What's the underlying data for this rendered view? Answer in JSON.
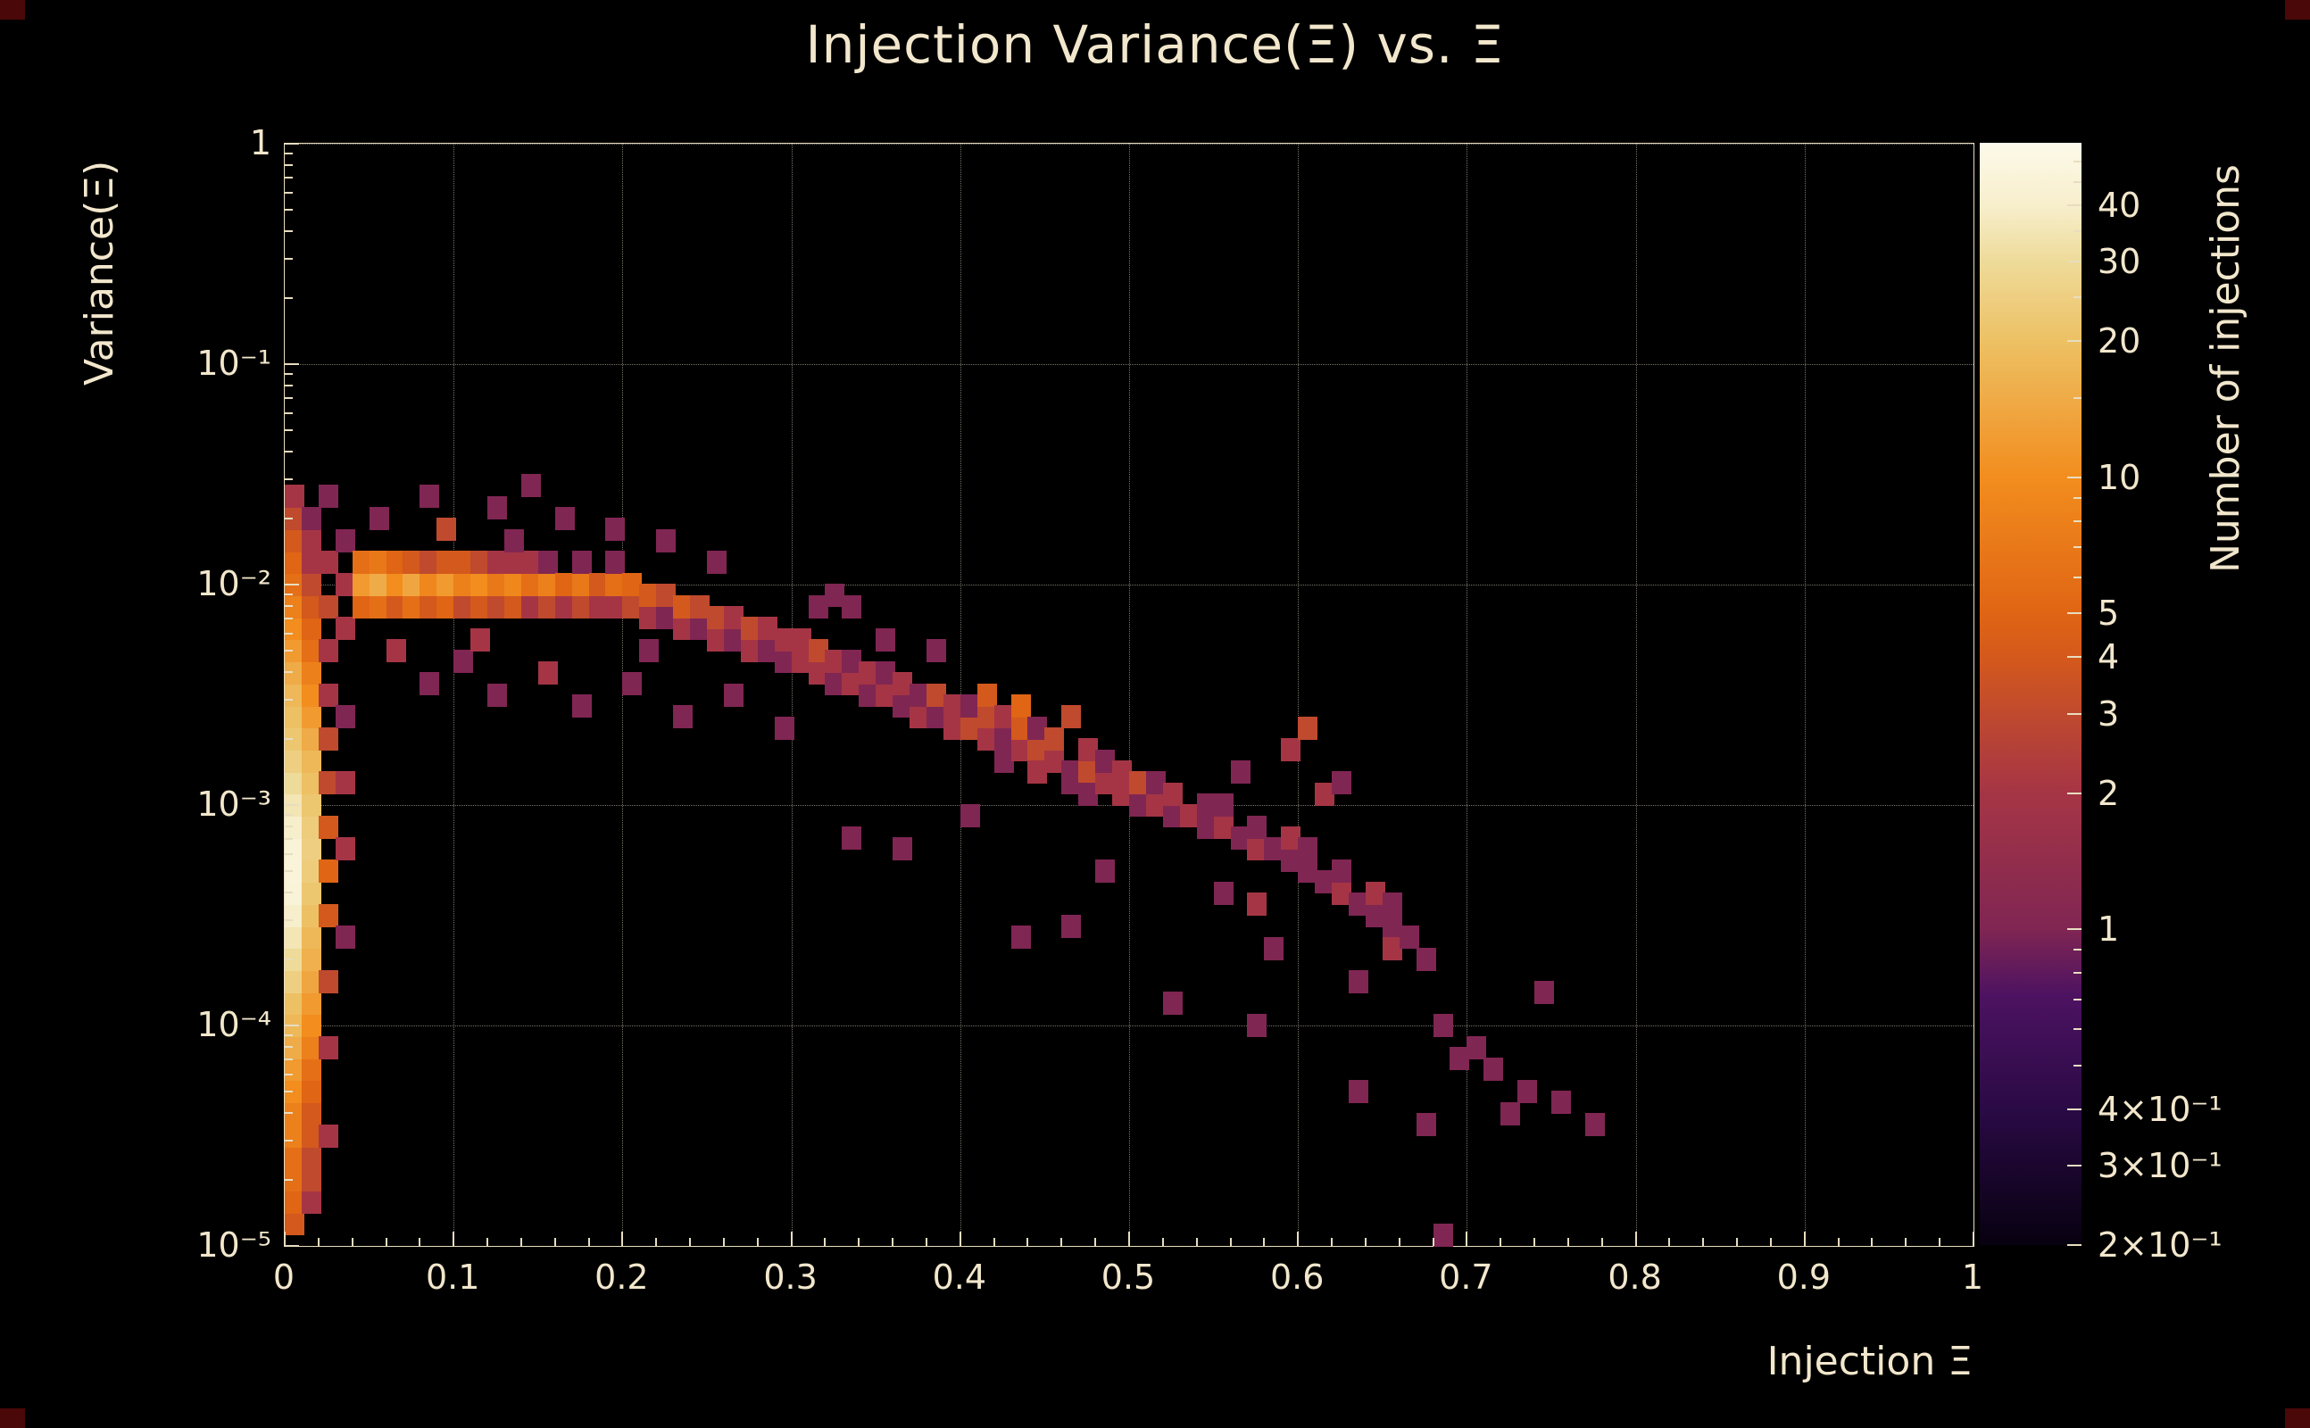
{
  "chart_data": {
    "type": "heatmap",
    "title": "Injection Variance(Ξ) vs. Ξ",
    "xlabel": "Injection Ξ",
    "ylabel": "Variance(Ξ)",
    "zlabel": "Number of injections",
    "xlim": [
      0,
      1
    ],
    "ylim": [
      1e-05,
      1
    ],
    "ylog": true,
    "zlim": [
      0.2,
      55
    ],
    "zlog": true,
    "grid": true,
    "x_ticks": [
      "0",
      "0.1",
      "0.2",
      "0.3",
      "0.4",
      "0.5",
      "0.6",
      "0.7",
      "0.8",
      "0.9",
      "1"
    ],
    "y_ticks": [
      {
        "logv": 0,
        "label": "1"
      },
      {
        "logv": -1,
        "label": "10⁻¹"
      },
      {
        "logv": -2,
        "label": "10⁻²"
      },
      {
        "logv": -3,
        "label": "10⁻³"
      },
      {
        "logv": -4,
        "label": "10⁻⁴"
      },
      {
        "logv": -5,
        "label": "10⁻⁵"
      }
    ],
    "colorbar_ticks": [
      {
        "v": 40,
        "label": "40"
      },
      {
        "v": 30,
        "label": "30"
      },
      {
        "v": 20,
        "label": "20"
      },
      {
        "v": 10,
        "label": "10"
      },
      {
        "v": 5,
        "label": "5"
      },
      {
        "v": 4,
        "label": "4"
      },
      {
        "v": 3,
        "label": "3"
      },
      {
        "v": 2,
        "label": "2"
      },
      {
        "v": 1,
        "label": "1"
      },
      {
        "v": 0.4,
        "label": "4×10⁻¹"
      },
      {
        "v": 0.3,
        "label": "3×10⁻¹"
      },
      {
        "v": 0.2,
        "label": "2×10⁻¹"
      }
    ],
    "colorbar_minor_ticks": [
      0.5,
      0.6,
      0.7,
      0.8,
      0.9,
      6,
      7,
      8,
      9,
      15,
      25,
      35,
      45,
      50
    ],
    "bin_width_x": 0.01,
    "bin_height_decades": 0.1,
    "cells": [
      [
        0.0,
        -4.9,
        4
      ],
      [
        0.0,
        -4.8,
        5
      ],
      [
        0.0,
        -4.7,
        6
      ],
      [
        0.0,
        -4.6,
        6
      ],
      [
        0.0,
        -4.5,
        8
      ],
      [
        0.0,
        -4.4,
        8
      ],
      [
        0.0,
        -4.3,
        10
      ],
      [
        0.0,
        -4.2,
        12
      ],
      [
        0.0,
        -4.1,
        15
      ],
      [
        0.0,
        -4.0,
        18
      ],
      [
        0.0,
        -3.9,
        20
      ],
      [
        0.0,
        -3.8,
        25
      ],
      [
        0.0,
        -3.7,
        30
      ],
      [
        0.0,
        -3.6,
        35
      ],
      [
        0.0,
        -3.5,
        40
      ],
      [
        0.0,
        -3.4,
        45
      ],
      [
        0.0,
        -3.3,
        47
      ],
      [
        0.0,
        -3.2,
        45
      ],
      [
        0.0,
        -3.1,
        40
      ],
      [
        0.0,
        -3.0,
        35
      ],
      [
        0.0,
        -2.9,
        30
      ],
      [
        0.0,
        -2.8,
        25
      ],
      [
        0.0,
        -2.7,
        22
      ],
      [
        0.0,
        -2.6,
        20
      ],
      [
        0.0,
        -2.5,
        18
      ],
      [
        0.0,
        -2.4,
        15
      ],
      [
        0.0,
        -2.3,
        12
      ],
      [
        0.0,
        -2.2,
        10
      ],
      [
        0.0,
        -2.1,
        8
      ],
      [
        0.0,
        -2.0,
        6
      ],
      [
        0.0,
        -1.9,
        5
      ],
      [
        0.0,
        -1.8,
        4
      ],
      [
        0.0,
        -1.7,
        3
      ],
      [
        0.0,
        -1.6,
        2
      ],
      [
        0.01,
        -4.8,
        2
      ],
      [
        0.01,
        -4.7,
        3
      ],
      [
        0.01,
        -4.6,
        3
      ],
      [
        0.01,
        -4.5,
        4
      ],
      [
        0.01,
        -4.4,
        4
      ],
      [
        0.01,
        -4.3,
        5
      ],
      [
        0.01,
        -4.2,
        6
      ],
      [
        0.01,
        -4.1,
        8
      ],
      [
        0.01,
        -4.0,
        10
      ],
      [
        0.01,
        -3.9,
        12
      ],
      [
        0.01,
        -3.8,
        14
      ],
      [
        0.01,
        -3.7,
        16
      ],
      [
        0.01,
        -3.6,
        18
      ],
      [
        0.01,
        -3.5,
        20
      ],
      [
        0.01,
        -3.4,
        22
      ],
      [
        0.01,
        -3.3,
        24
      ],
      [
        0.01,
        -3.2,
        25
      ],
      [
        0.01,
        -3.1,
        24
      ],
      [
        0.01,
        -3.0,
        22
      ],
      [
        0.01,
        -2.9,
        20
      ],
      [
        0.01,
        -2.8,
        18
      ],
      [
        0.01,
        -2.7,
        15
      ],
      [
        0.01,
        -2.6,
        12
      ],
      [
        0.01,
        -2.5,
        10
      ],
      [
        0.01,
        -2.4,
        8
      ],
      [
        0.01,
        -2.3,
        6
      ],
      [
        0.01,
        -2.2,
        5
      ],
      [
        0.01,
        -2.1,
        4
      ],
      [
        0.01,
        -2.0,
        3
      ],
      [
        0.01,
        -1.9,
        2
      ],
      [
        0.01,
        -1.8,
        2
      ],
      [
        0.01,
        -1.7,
        1
      ],
      [
        0.02,
        -4.5,
        2
      ],
      [
        0.02,
        -4.1,
        2
      ],
      [
        0.02,
        -3.8,
        3
      ],
      [
        0.02,
        -3.5,
        4
      ],
      [
        0.02,
        -3.3,
        5
      ],
      [
        0.02,
        -3.1,
        4
      ],
      [
        0.02,
        -2.9,
        3
      ],
      [
        0.02,
        -2.7,
        3
      ],
      [
        0.02,
        -2.5,
        2
      ],
      [
        0.02,
        -2.3,
        2
      ],
      [
        0.02,
        -2.1,
        3
      ],
      [
        0.02,
        -1.9,
        2
      ],
      [
        0.02,
        -1.6,
        1
      ],
      [
        0.03,
        -3.6,
        1
      ],
      [
        0.03,
        -3.2,
        2
      ],
      [
        0.03,
        -2.9,
        2
      ],
      [
        0.03,
        -2.6,
        1
      ],
      [
        0.03,
        -2.2,
        2
      ],
      [
        0.03,
        -2.0,
        2
      ],
      [
        0.03,
        -1.8,
        1
      ],
      [
        0.04,
        -2.1,
        5
      ],
      [
        0.04,
        -2.0,
        12
      ],
      [
        0.04,
        -1.9,
        6
      ],
      [
        0.05,
        -2.1,
        6
      ],
      [
        0.05,
        -2.0,
        15
      ],
      [
        0.05,
        -1.9,
        7
      ],
      [
        0.06,
        -2.1,
        4
      ],
      [
        0.06,
        -2.0,
        10
      ],
      [
        0.06,
        -1.9,
        5
      ],
      [
        0.07,
        -2.1,
        6
      ],
      [
        0.07,
        -2.0,
        14
      ],
      [
        0.07,
        -1.9,
        4
      ],
      [
        0.08,
        -2.1,
        4
      ],
      [
        0.08,
        -2.0,
        9
      ],
      [
        0.08,
        -1.9,
        3
      ],
      [
        0.09,
        -2.1,
        5
      ],
      [
        0.09,
        -2.0,
        12
      ],
      [
        0.09,
        -1.9,
        4
      ],
      [
        0.1,
        -2.1,
        3
      ],
      [
        0.1,
        -2.0,
        8
      ],
      [
        0.1,
        -1.9,
        4
      ],
      [
        0.11,
        -2.1,
        4
      ],
      [
        0.11,
        -2.0,
        10
      ],
      [
        0.11,
        -1.9,
        3
      ],
      [
        0.12,
        -2.1,
        3
      ],
      [
        0.12,
        -2.0,
        7
      ],
      [
        0.12,
        -1.9,
        2
      ],
      [
        0.13,
        -2.1,
        4
      ],
      [
        0.13,
        -2.0,
        9
      ],
      [
        0.13,
        -1.9,
        2
      ],
      [
        0.14,
        -2.1,
        2
      ],
      [
        0.14,
        -2.0,
        6
      ],
      [
        0.14,
        -1.9,
        2
      ],
      [
        0.15,
        -2.1,
        3
      ],
      [
        0.15,
        -2.0,
        8
      ],
      [
        0.15,
        -1.9,
        1
      ],
      [
        0.16,
        -2.1,
        2
      ],
      [
        0.16,
        -2.0,
        5
      ],
      [
        0.17,
        -2.1,
        3
      ],
      [
        0.17,
        -2.0,
        7
      ],
      [
        0.17,
        -1.9,
        1
      ],
      [
        0.18,
        -2.1,
        2
      ],
      [
        0.18,
        -2.0,
        4
      ],
      [
        0.19,
        -2.1,
        2
      ],
      [
        0.19,
        -2.0,
        6
      ],
      [
        0.19,
        -1.9,
        1
      ],
      [
        0.2,
        -2.1,
        3
      ],
      [
        0.2,
        -2.0,
        5
      ],
      [
        0.21,
        -2.15,
        2
      ],
      [
        0.21,
        -2.05,
        4
      ],
      [
        0.22,
        -2.15,
        1
      ],
      [
        0.22,
        -2.05,
        3
      ],
      [
        0.23,
        -2.2,
        2
      ],
      [
        0.23,
        -2.1,
        4
      ],
      [
        0.24,
        -2.2,
        1
      ],
      [
        0.24,
        -2.1,
        3
      ],
      [
        0.25,
        -2.25,
        2
      ],
      [
        0.25,
        -2.15,
        3
      ],
      [
        0.26,
        -2.25,
        1
      ],
      [
        0.26,
        -2.15,
        2
      ],
      [
        0.27,
        -2.3,
        2
      ],
      [
        0.27,
        -2.2,
        3
      ],
      [
        0.28,
        -2.3,
        1
      ],
      [
        0.28,
        -2.2,
        2
      ],
      [
        0.29,
        -2.35,
        1
      ],
      [
        0.29,
        -2.25,
        2
      ],
      [
        0.3,
        -2.35,
        2
      ],
      [
        0.3,
        -2.25,
        2
      ],
      [
        0.31,
        -2.1,
        1
      ],
      [
        0.32,
        -2.05,
        1
      ],
      [
        0.33,
        -2.1,
        1
      ],
      [
        0.05,
        -1.7,
        1
      ],
      [
        0.08,
        -1.6,
        1
      ],
      [
        0.09,
        -1.75,
        3
      ],
      [
        0.12,
        -1.65,
        1
      ],
      [
        0.13,
        -1.8,
        1
      ],
      [
        0.14,
        -1.55,
        1
      ],
      [
        0.16,
        -1.7,
        1
      ],
      [
        0.19,
        -1.75,
        1
      ],
      [
        0.22,
        -1.8,
        1
      ],
      [
        0.25,
        -1.9,
        1
      ],
      [
        0.06,
        -2.3,
        2
      ],
      [
        0.08,
        -2.45,
        1
      ],
      [
        0.1,
        -2.35,
        1
      ],
      [
        0.11,
        -2.25,
        2
      ],
      [
        0.12,
        -2.5,
        1
      ],
      [
        0.15,
        -2.4,
        2
      ],
      [
        0.17,
        -2.55,
        1
      ],
      [
        0.2,
        -2.45,
        1
      ],
      [
        0.21,
        -2.3,
        1
      ],
      [
        0.23,
        -2.6,
        1
      ],
      [
        0.26,
        -2.5,
        1
      ],
      [
        0.29,
        -2.65,
        1
      ],
      [
        0.31,
        -2.4,
        2
      ],
      [
        0.31,
        -2.3,
        3
      ],
      [
        0.32,
        -2.45,
        1
      ],
      [
        0.32,
        -2.35,
        2
      ],
      [
        0.33,
        -2.45,
        2
      ],
      [
        0.33,
        -2.35,
        1
      ],
      [
        0.34,
        -2.5,
        1
      ],
      [
        0.34,
        -2.4,
        2
      ],
      [
        0.35,
        -2.5,
        2
      ],
      [
        0.35,
        -2.4,
        1
      ],
      [
        0.35,
        -2.25,
        1
      ],
      [
        0.36,
        -2.55,
        1
      ],
      [
        0.36,
        -2.45,
        2
      ],
      [
        0.37,
        -2.6,
        2
      ],
      [
        0.37,
        -2.5,
        1
      ],
      [
        0.38,
        -2.6,
        1
      ],
      [
        0.38,
        -2.5,
        3
      ],
      [
        0.38,
        -2.3,
        1
      ],
      [
        0.39,
        -2.65,
        2
      ],
      [
        0.39,
        -2.55,
        2
      ],
      [
        0.4,
        -2.65,
        3
      ],
      [
        0.4,
        -2.55,
        1
      ],
      [
        0.41,
        -2.7,
        2
      ],
      [
        0.41,
        -2.6,
        3
      ],
      [
        0.41,
        -2.5,
        4
      ],
      [
        0.42,
        -2.7,
        1
      ],
      [
        0.42,
        -2.6,
        2
      ],
      [
        0.42,
        -2.8,
        1
      ],
      [
        0.43,
        -2.75,
        2
      ],
      [
        0.43,
        -2.65,
        4
      ],
      [
        0.43,
        -2.55,
        5
      ],
      [
        0.44,
        -2.75,
        3
      ],
      [
        0.44,
        -2.65,
        1
      ],
      [
        0.44,
        -2.85,
        2
      ],
      [
        0.45,
        -2.8,
        2
      ],
      [
        0.45,
        -2.7,
        3
      ],
      [
        0.46,
        -2.85,
        1
      ],
      [
        0.46,
        -2.6,
        3
      ],
      [
        0.46,
        -2.9,
        1
      ],
      [
        0.47,
        -2.85,
        3
      ],
      [
        0.47,
        -2.95,
        1
      ],
      [
        0.47,
        -2.75,
        2
      ],
      [
        0.48,
        -2.9,
        2
      ],
      [
        0.48,
        -2.8,
        1
      ],
      [
        0.49,
        -2.95,
        2
      ],
      [
        0.49,
        -2.85,
        2
      ],
      [
        0.5,
        -3.0,
        1
      ],
      [
        0.5,
        -2.9,
        3
      ],
      [
        0.51,
        -3.0,
        2
      ],
      [
        0.51,
        -2.9,
        1
      ],
      [
        0.52,
        -3.05,
        1
      ],
      [
        0.52,
        -2.95,
        2
      ],
      [
        0.53,
        -3.05,
        2
      ],
      [
        0.54,
        -3.1,
        1
      ],
      [
        0.54,
        -3.0,
        1
      ],
      [
        0.55,
        -3.1,
        2
      ],
      [
        0.55,
        -3.0,
        1
      ],
      [
        0.56,
        -3.15,
        1
      ],
      [
        0.56,
        -2.85,
        1
      ],
      [
        0.57,
        -3.2,
        2
      ],
      [
        0.57,
        -3.1,
        1
      ],
      [
        0.58,
        -3.2,
        1
      ],
      [
        0.59,
        -3.25,
        1
      ],
      [
        0.59,
        -3.15,
        2
      ],
      [
        0.59,
        -2.75,
        2
      ],
      [
        0.6,
        -3.3,
        1
      ],
      [
        0.6,
        -3.2,
        1
      ],
      [
        0.6,
        -2.65,
        3
      ],
      [
        0.61,
        -3.35,
        1
      ],
      [
        0.61,
        -2.95,
        2
      ],
      [
        0.62,
        -3.4,
        2
      ],
      [
        0.62,
        -3.3,
        1
      ],
      [
        0.62,
        -2.9,
        1
      ],
      [
        0.63,
        -3.45,
        1
      ],
      [
        0.64,
        -3.5,
        1
      ],
      [
        0.64,
        -3.4,
        2
      ],
      [
        0.65,
        -3.55,
        1
      ],
      [
        0.65,
        -3.45,
        1
      ],
      [
        0.65,
        -3.65,
        2
      ],
      [
        0.66,
        -3.6,
        1
      ],
      [
        0.67,
        -3.7,
        1
      ],
      [
        0.67,
        -4.45,
        1
      ],
      [
        0.68,
        -4.0,
        1
      ],
      [
        0.68,
        -4.95,
        1
      ],
      [
        0.69,
        -4.15,
        1
      ],
      [
        0.7,
        -4.1,
        1
      ],
      [
        0.71,
        -4.2,
        1
      ],
      [
        0.72,
        -4.4,
        1
      ],
      [
        0.73,
        -4.3,
        1
      ],
      [
        0.74,
        -3.85,
        1
      ],
      [
        0.75,
        -4.35,
        1
      ],
      [
        0.77,
        -4.45,
        1
      ],
      [
        0.33,
        -3.15,
        1
      ],
      [
        0.36,
        -3.2,
        1
      ],
      [
        0.4,
        -3.05,
        1
      ],
      [
        0.43,
        -3.6,
        1
      ],
      [
        0.46,
        -3.55,
        1
      ],
      [
        0.48,
        -3.3,
        1
      ],
      [
        0.52,
        -3.9,
        1
      ],
      [
        0.55,
        -3.4,
        1
      ],
      [
        0.57,
        -4.0,
        1
      ],
      [
        0.57,
        -3.45,
        2
      ],
      [
        0.58,
        -3.65,
        1
      ],
      [
        0.63,
        -3.8,
        1
      ],
      [
        0.63,
        -4.3,
        1
      ]
    ]
  },
  "palette": {
    "stops": [
      [
        -0.75,
        "#070110"
      ],
      [
        -0.4,
        "#2a0a45"
      ],
      [
        -0.15,
        "#4c1261"
      ],
      [
        0.0,
        "#802653"
      ],
      [
        0.3,
        "#a53545"
      ],
      [
        0.48,
        "#c04a2e"
      ],
      [
        0.6,
        "#d4591c"
      ],
      [
        0.7,
        "#e06514"
      ],
      [
        1.0,
        "#f28d1e"
      ],
      [
        1.3,
        "#edc063"
      ],
      [
        1.48,
        "#eedb9a"
      ],
      [
        1.6,
        "#f7eecb"
      ],
      [
        1.74,
        "#fdfaea"
      ]
    ],
    "background": "#000000",
    "text_color": "#f2e7cc",
    "frame_color": "#e8ddc0",
    "grid_color": "rgba(240,231,209,0.5)",
    "corner_mark": "#4a0808"
  }
}
